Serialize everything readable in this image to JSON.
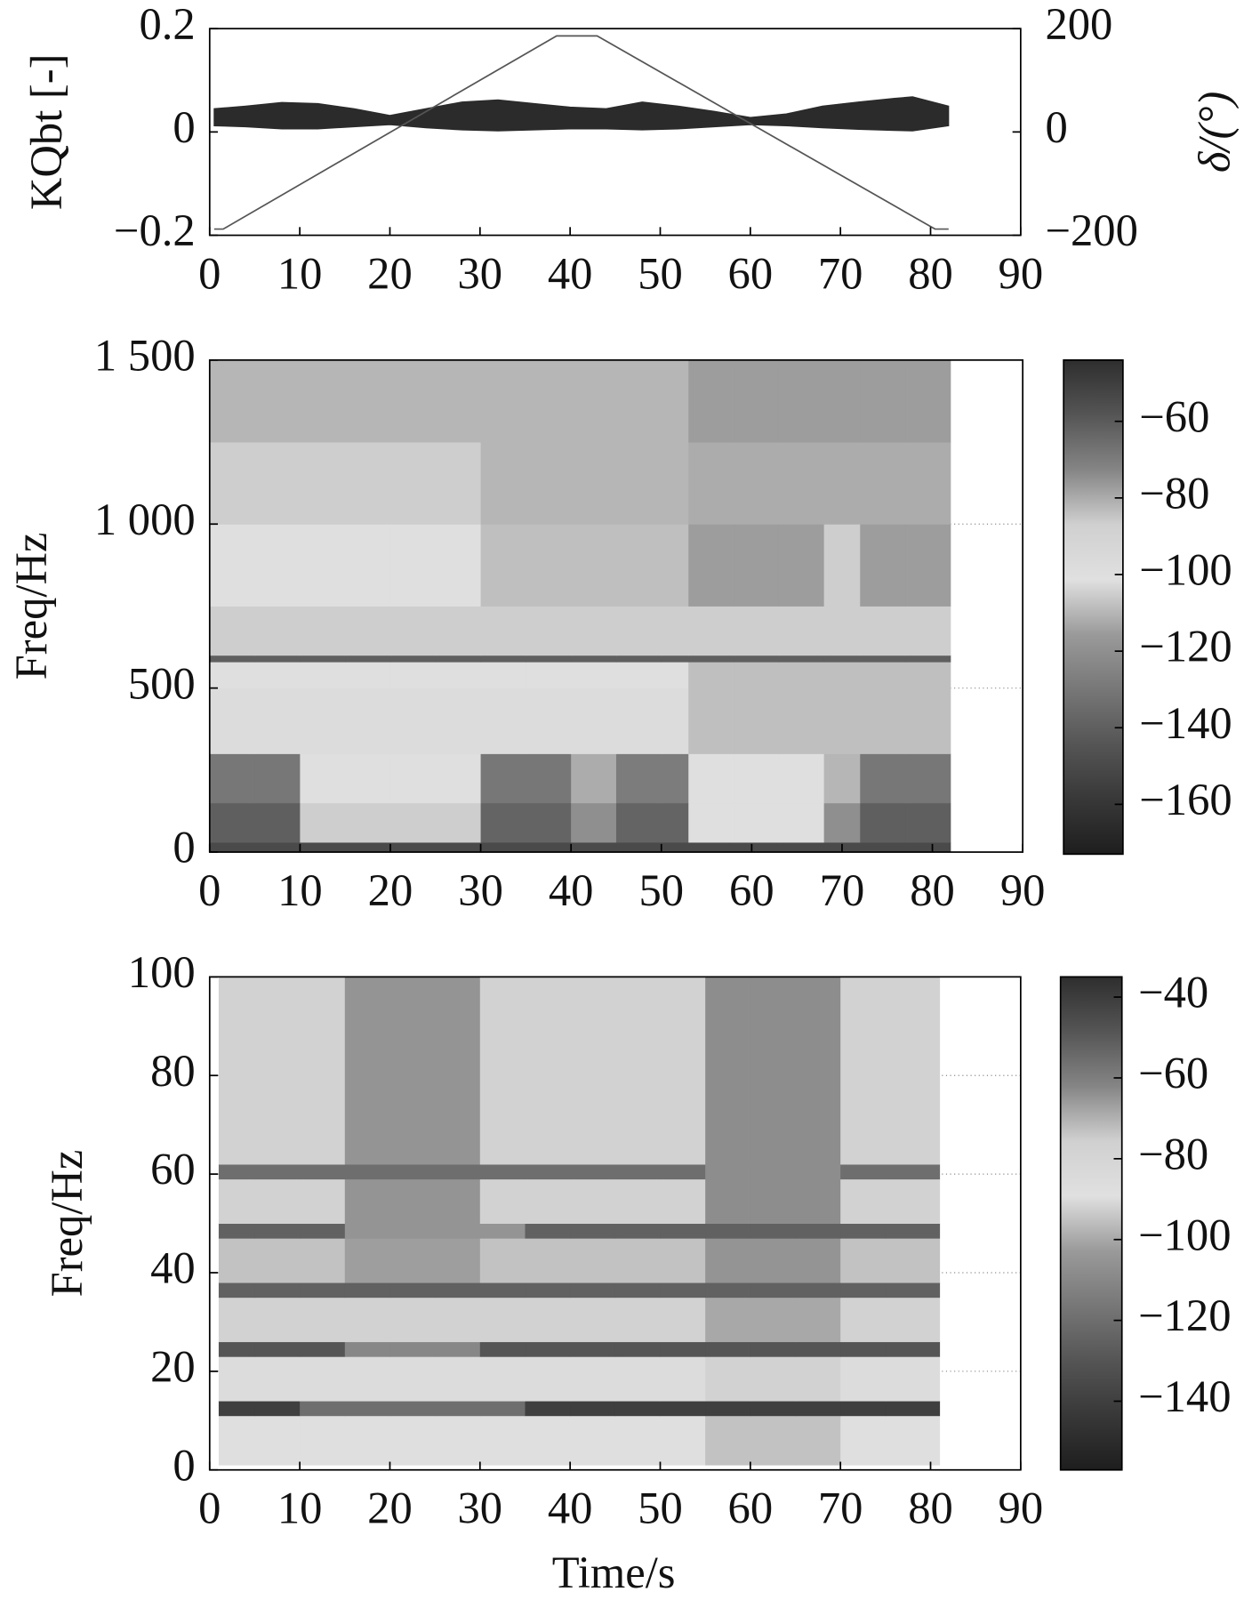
{
  "chart_data": [
    {
      "type": "line",
      "xlim": [
        0,
        90
      ],
      "xticks": [
        0,
        10,
        20,
        30,
        40,
        50,
        60,
        70,
        80,
        90
      ],
      "ylim": [
        -0.2,
        0.2
      ],
      "yticks": [
        {
          "value": -0.2,
          "label": "−0.2"
        },
        0,
        0.2
      ],
      "y2lim": [
        -200,
        200
      ],
      "y2ticks": [
        {
          "value": -200,
          "label": "−200"
        },
        0,
        200
      ],
      "ylabel": "KQbt [-]",
      "y2label": "δ/(°)",
      "series": [
        {
          "color": "#2b2b2b",
          "x": [
            0.5,
            4,
            8,
            12,
            16,
            20,
            24,
            28,
            32,
            36,
            40,
            44,
            48,
            52,
            56,
            60,
            64,
            68,
            72,
            76,
            78,
            82
          ],
          "upper": [
            0.045,
            0.05,
            0.057,
            0.055,
            0.045,
            0.032,
            0.045,
            0.058,
            0.062,
            0.055,
            0.048,
            0.045,
            0.058,
            0.05,
            0.04,
            0.028,
            0.035,
            0.05,
            0.058,
            0.065,
            0.068,
            0.05
          ],
          "lower": [
            0.012,
            0.01,
            0.006,
            0.006,
            0.01,
            0.014,
            0.008,
            0.004,
            0.002,
            0.004,
            0.006,
            0.006,
            0.004,
            0.006,
            0.01,
            0.014,
            0.012,
            0.008,
            0.005,
            0.003,
            0.002,
            0.012
          ]
        },
        {
          "color": "#555555",
          "axis": "y2",
          "x": [
            0.5,
            1.5,
            38.5,
            43,
            80.5,
            82
          ],
          "values": [
            -188,
            -188,
            186,
            186,
            -188,
            -188
          ]
        }
      ]
    },
    {
      "type": "heatmap",
      "xlim": [
        0,
        90
      ],
      "xticks": [
        0,
        10,
        20,
        30,
        40,
        50,
        60,
        70,
        80,
        90
      ],
      "ylim": [
        0,
        1500
      ],
      "yticks": [
        0,
        500,
        {
          "value": 1000,
          "label": "1 000"
        },
        {
          "value": 1500,
          "label": "1 500"
        }
      ],
      "ylabel": "Freq/Hz",
      "grid": true,
      "x_edges": [
        0,
        5,
        10,
        15,
        20,
        25,
        30,
        35,
        40,
        45,
        50,
        53,
        58,
        63,
        68,
        72,
        77,
        82
      ],
      "y_edges": [
        0,
        30,
        150,
        300,
        500,
        580,
        600,
        750,
        1000,
        1250,
        1500
      ],
      "z": [
        [
          -150,
          -150,
          -150,
          -150,
          -150,
          -150,
          -150,
          -150,
          -150,
          -150,
          -150,
          -150,
          -150,
          -150,
          -150,
          -150,
          -150
        ],
        [
          -140,
          -140,
          -105,
          -105,
          -105,
          -105,
          -138,
          -138,
          -120,
          -138,
          -138,
          -100,
          -100,
          -100,
          -120,
          -140,
          -140
        ],
        [
          -130,
          -130,
          -100,
          -100,
          -100,
          -100,
          -130,
          -130,
          -112,
          -128,
          -128,
          -100,
          -100,
          -100,
          -110,
          -130,
          -130
        ],
        [
          -98,
          -98,
          -98,
          -98,
          -98,
          -98,
          -98,
          -98,
          -98,
          -98,
          -98,
          -108,
          -108,
          -108,
          -108,
          -108,
          -108
        ],
        [
          -100,
          -100,
          -100,
          -100,
          -100,
          -100,
          -100,
          -100,
          -100,
          -100,
          -100,
          -108,
          -108,
          -108,
          -108,
          -108,
          -108
        ],
        [
          -140,
          -140,
          -140,
          -140,
          -140,
          -140,
          -140,
          -140,
          -140,
          -140,
          -140,
          -140,
          -140,
          -140,
          -140,
          -140,
          -140
        ],
        [
          -105,
          -105,
          -105,
          -105,
          -105,
          -105,
          -105,
          -105,
          -105,
          -105,
          -105,
          -105,
          -105,
          -105,
          -105,
          -105,
          -105
        ],
        [
          -100,
          -100,
          -100,
          -100,
          -100,
          -100,
          -108,
          -108,
          -108,
          -108,
          -108,
          -115,
          -115,
          -115,
          -105,
          -115,
          -115
        ],
        [
          -105,
          -105,
          -105,
          -105,
          -105,
          -105,
          -110,
          -110,
          -110,
          -110,
          -110,
          -112,
          -112,
          -112,
          -112,
          -112,
          -112
        ],
        [
          -110,
          -110,
          -110,
          -110,
          -110,
          -110,
          -110,
          -110,
          -110,
          -110,
          -110,
          -115,
          -115,
          -115,
          -115,
          -115,
          -115
        ]
      ],
      "zlim": [
        -173,
        -44
      ],
      "zticks": [
        {
          "value": -160,
          "label": "−160"
        },
        {
          "value": -140,
          "label": "−140"
        },
        {
          "value": -120,
          "label": "−120"
        },
        {
          "value": -100,
          "label": "−100"
        },
        {
          "value": -80,
          "label": "−80"
        },
        {
          "value": -60,
          "label": "−60"
        }
      ],
      "colormap": [
        "#1e1e1e",
        "#383838",
        "#555555",
        "#777777",
        "#9a9a9a",
        "#e0e0e0",
        "#d0d0d0",
        "#858585",
        "#555555",
        "#2e2e2e"
      ]
    },
    {
      "type": "heatmap",
      "xlim": [
        0,
        90
      ],
      "xticks": [
        0,
        10,
        20,
        30,
        40,
        50,
        60,
        70,
        80,
        90
      ],
      "ylim": [
        0,
        100
      ],
      "yticks": [
        0,
        20,
        40,
        60,
        80,
        100
      ],
      "ylabel": "Freq/Hz",
      "xlabel": "Time/s",
      "grid": true,
      "x_edges": [
        1,
        5,
        10,
        15,
        20,
        25,
        30,
        35,
        40,
        45,
        50,
        55,
        60,
        65,
        70,
        75,
        81
      ],
      "y_edges": [
        1,
        11,
        14,
        23,
        26,
        35,
        38,
        47,
        50,
        59,
        62,
        100
      ],
      "z": [
        [
          -88,
          -88,
          -88,
          -88,
          -88,
          -88,
          -88,
          -88,
          -88,
          -88,
          -88,
          -95,
          -95,
          -95,
          -88,
          -88
        ],
        [
          -140,
          -140,
          -120,
          -120,
          -120,
          -120,
          -120,
          -140,
          -140,
          -140,
          -140,
          -140,
          -140,
          -140,
          -140,
          -140
        ],
        [
          -90,
          -90,
          -90,
          -90,
          -90,
          -90,
          -90,
          -90,
          -90,
          -90,
          -90,
          -92,
          -92,
          -92,
          -90,
          -90
        ],
        [
          -130,
          -130,
          -130,
          -110,
          -110,
          -110,
          -130,
          -130,
          -130,
          -130,
          -130,
          -130,
          -130,
          -130,
          -130,
          -130
        ],
        [
          -92,
          -92,
          -92,
          -92,
          -92,
          -92,
          -92,
          -92,
          -92,
          -92,
          -92,
          -100,
          -100,
          -100,
          -92,
          -92
        ],
        [
          -125,
          -125,
          -125,
          -125,
          -125,
          -125,
          -125,
          -125,
          -125,
          -125,
          -125,
          -125,
          -125,
          -125,
          -125,
          -125
        ],
        [
          -95,
          -95,
          -95,
          -102,
          -102,
          -102,
          -95,
          -95,
          -95,
          -95,
          -95,
          -105,
          -105,
          -105,
          -95,
          -95
        ],
        [
          -125,
          -125,
          -125,
          -105,
          -105,
          -105,
          -105,
          -125,
          -125,
          -125,
          -125,
          -125,
          -125,
          -125,
          -125,
          -125
        ],
        [
          -92,
          -92,
          -92,
          -105,
          -105,
          -105,
          -92,
          -92,
          -92,
          -92,
          -92,
          -108,
          -108,
          -108,
          -92,
          -92
        ],
        [
          -120,
          -120,
          -120,
          -120,
          -120,
          -120,
          -120,
          -120,
          -120,
          -120,
          -120,
          -108,
          -108,
          -108,
          -120,
          -120
        ],
        [
          -92,
          -92,
          -92,
          -105,
          -105,
          -105,
          -92,
          -92,
          -92,
          -92,
          -92,
          -108,
          -108,
          -108,
          -92,
          -92
        ]
      ],
      "zlim": [
        -157,
        -35
      ],
      "zticks": [
        {
          "value": -140,
          "label": "−140"
        },
        {
          "value": -120,
          "label": "−120"
        },
        {
          "value": -100,
          "label": "−100"
        },
        {
          "value": -80,
          "label": "−80"
        },
        {
          "value": -60,
          "label": "−60"
        },
        {
          "value": -40,
          "label": "−40"
        }
      ],
      "colormap": [
        "#1e1e1e",
        "#383838",
        "#555555",
        "#777777",
        "#9a9a9a",
        "#e0e0e0",
        "#d0d0d0",
        "#858585",
        "#555555",
        "#2e2e2e"
      ]
    }
  ]
}
